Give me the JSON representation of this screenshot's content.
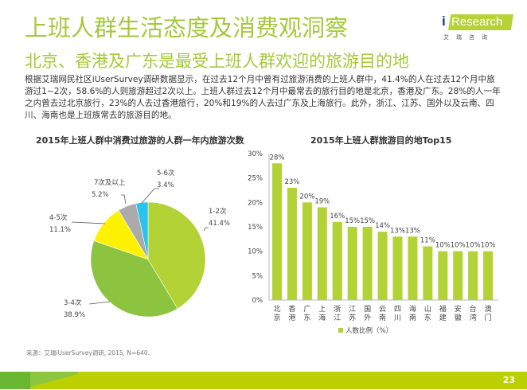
{
  "header": {
    "title": "上班人群生活态度及消费观洞察",
    "subtitle": "北京、香港及广东是最受上班人群欢迎的旅游目的地",
    "logo_brand_i": "i",
    "logo_brand": "Research",
    "logo_sub": "艾瑞咨询"
  },
  "paragraph": "根据艾瑞网民社区iUserSurvey调研数据显示，在过去12个月中曾有过旅游消费的上班人群中，41.4%的人在过去12个月中旅游过1~2次，58.6%的人则旅游超过2次以上。上班人群过去12个月中最常去的旅行目的地是北京，香港及广东。28%的人一年之内曾去过北京旅行，23%的人去过香港旅行，20%和19%的人去过广东及上海旅行。此外，浙江、江苏、国外以及云南、四川、海南也是上班族常去的旅游目的地。",
  "source": "来源：艾瑞iUserSurvey调研, 2015, N=640.",
  "page_number": "23",
  "colors": {
    "brand_green": "#a5c93a",
    "bar_green": "#b2d235",
    "footer_green": "#bcd000"
  },
  "chart_data": [
    {
      "type": "pie",
      "title": "2015年上班人群中消费过旅游的人群一年内旅游次数",
      "slices": [
        {
          "label": "1-2次",
          "value": 41.4,
          "value_label": "41.4%",
          "color": "#b2d235"
        },
        {
          "label": "3-4次",
          "value": 38.9,
          "value_label": "38.9%",
          "color": "#8cc43f"
        },
        {
          "label": "4-5次",
          "value": 11.1,
          "value_label": "11.1%",
          "color": "#fff200"
        },
        {
          "label": "7次及以上",
          "value": 5.2,
          "value_label": "5.2%",
          "color": "#aaaaaa"
        },
        {
          "label": "5-6次",
          "value": 3.4,
          "value_label": "3.4%",
          "color": "#29c3ec"
        }
      ],
      "start": "12 o'clock, clockwise"
    },
    {
      "type": "bar",
      "title": "2015年上班人群旅游目的地Top15",
      "categories": [
        "北京",
        "香港",
        "广东",
        "上海",
        "浙江",
        "江苏",
        "国外",
        "云南",
        "四川",
        "海南",
        "山东",
        "福建",
        "安徽",
        "台湾",
        "澳门"
      ],
      "series": [
        {
          "name": "人数比例（%）",
          "values": [
            28,
            23,
            20,
            19,
            16,
            15,
            15,
            14,
            13,
            13,
            11,
            10,
            10,
            10,
            10
          ],
          "labels": [
            "28%",
            "23%",
            "20%",
            "19%",
            "16%",
            "15%",
            "15%",
            "14%",
            "13%",
            "13%",
            "11%",
            "10%",
            "10%",
            "10%",
            "10%"
          ]
        }
      ],
      "ylim": [
        0,
        30
      ],
      "yticks": [
        0,
        5,
        10,
        15,
        20,
        25,
        30
      ],
      "ytick_labels": [
        "0%",
        "5%",
        "10%",
        "15%",
        "20%",
        "25%",
        "30%"
      ],
      "xlabel": "",
      "ylabel": "",
      "grid": false,
      "legend": "bottom"
    }
  ]
}
